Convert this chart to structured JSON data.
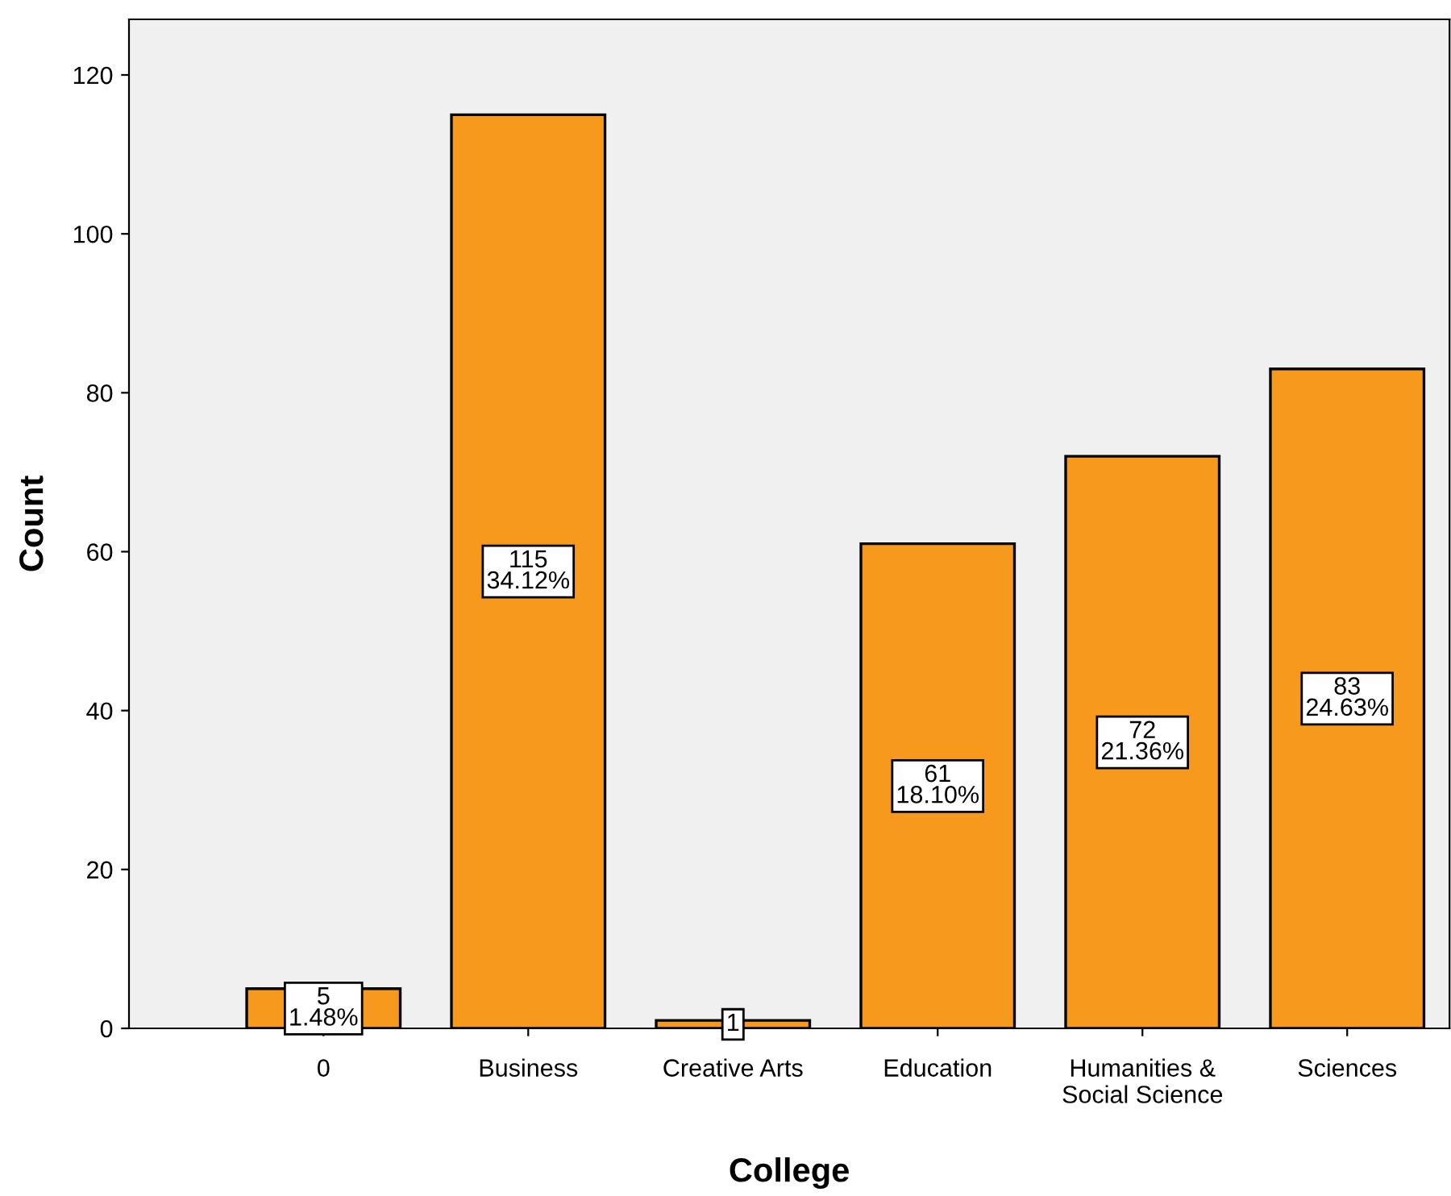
{
  "chart_data": {
    "type": "bar",
    "xlabel": "College",
    "ylabel": "Count",
    "categories": [
      "0",
      "Business",
      "Creative Arts",
      "Education",
      "Humanities &\nSocial Science",
      "Sciences"
    ],
    "values": [
      5,
      115,
      1,
      61,
      72,
      83
    ],
    "value_labels": [
      "5\n1.48%",
      "115\n34.12%",
      "1",
      "61\n18.10%",
      "72\n21.36%",
      "83\n24.63%"
    ],
    "color": "#f7991c",
    "ylim": [
      0,
      127
    ],
    "yticks": [
      0,
      20,
      40,
      60,
      80,
      100,
      120
    ],
    "grid": false,
    "legend": false
  }
}
